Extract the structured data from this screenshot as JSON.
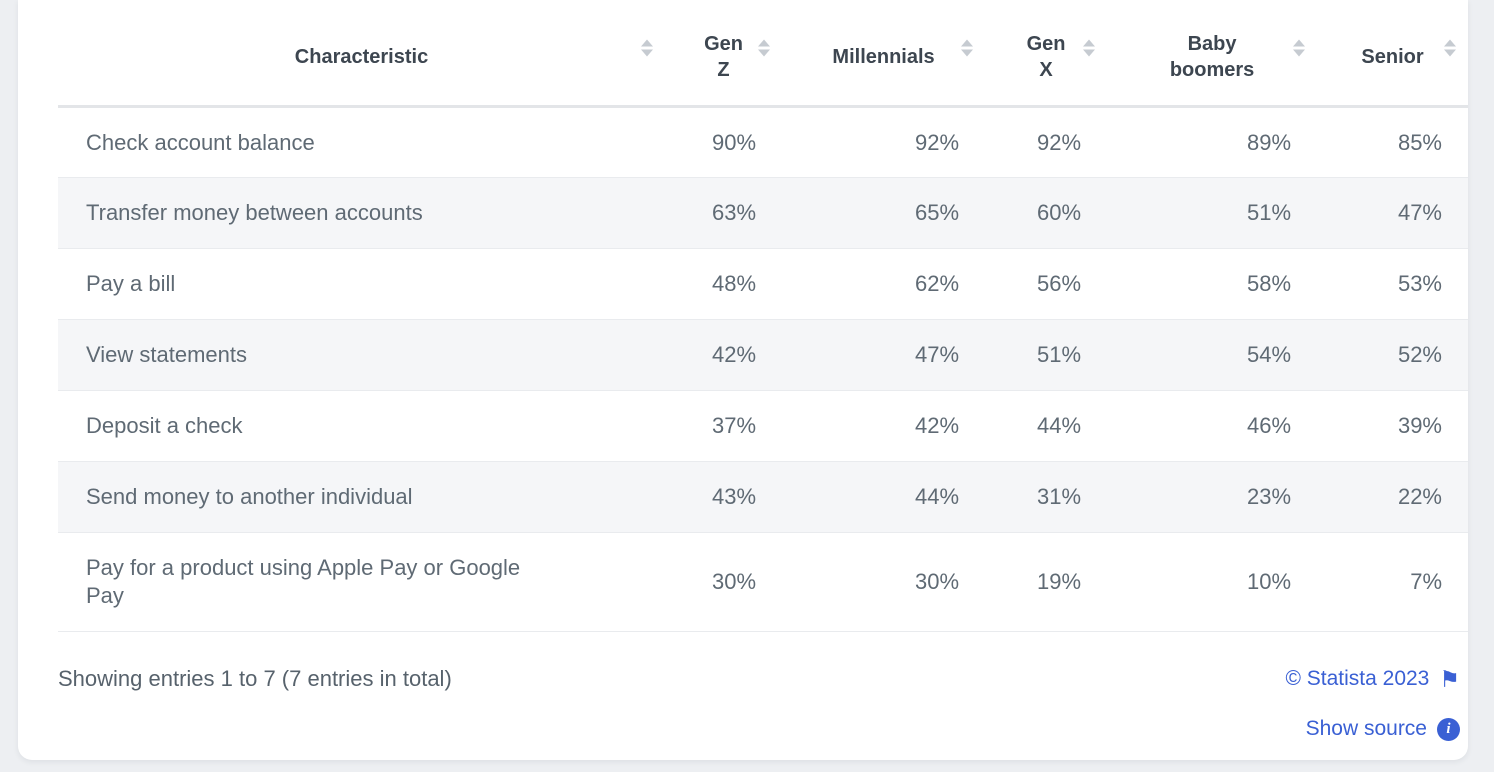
{
  "table": {
    "columns": [
      {
        "id": "characteristic",
        "label": "Characteristic"
      },
      {
        "id": "gen-z",
        "label": "Gen Z"
      },
      {
        "id": "millennials",
        "label": "Millennials"
      },
      {
        "id": "gen-x",
        "label": "Gen X"
      },
      {
        "id": "baby-boomers",
        "label": "Baby boomers"
      },
      {
        "id": "senior",
        "label": "Senior"
      }
    ],
    "rows": [
      {
        "characteristic": "Check account balance",
        "values": [
          "90%",
          "92%",
          "92%",
          "89%",
          "85%"
        ]
      },
      {
        "characteristic": "Transfer money between accounts",
        "values": [
          "63%",
          "65%",
          "60%",
          "51%",
          "47%"
        ]
      },
      {
        "characteristic": "Pay a bill",
        "values": [
          "48%",
          "62%",
          "56%",
          "58%",
          "53%"
        ]
      },
      {
        "characteristic": "View statements",
        "values": [
          "42%",
          "47%",
          "51%",
          "54%",
          "52%"
        ]
      },
      {
        "characteristic": "Deposit a check",
        "values": [
          "37%",
          "42%",
          "44%",
          "46%",
          "39%"
        ]
      },
      {
        "characteristic": "Send money to another individual",
        "values": [
          "43%",
          "44%",
          "31%",
          "23%",
          "22%"
        ]
      },
      {
        "characteristic": "Pay for a product using Apple Pay or Google Pay",
        "values": [
          "30%",
          "30%",
          "19%",
          "10%",
          "7%"
        ]
      }
    ]
  },
  "footer": {
    "showing_text": "Showing entries 1 to 7 (7 entries in total)",
    "copyright_label": "© Statista 2023",
    "show_source_label": "Show source"
  },
  "icons": {
    "flag_glyph": "⚑",
    "info_glyph": "i"
  },
  "colors": {
    "page_background": "#edeff2",
    "card_background": "#ffffff",
    "header_text": "#3d4650",
    "body_text": "#5f6a74",
    "stripe_background": "#f5f6f8",
    "row_border": "#e9ebee",
    "header_border": "#e3e5e8",
    "link_blue": "#3a60d4",
    "sort_icon": "#c6cbd1"
  }
}
